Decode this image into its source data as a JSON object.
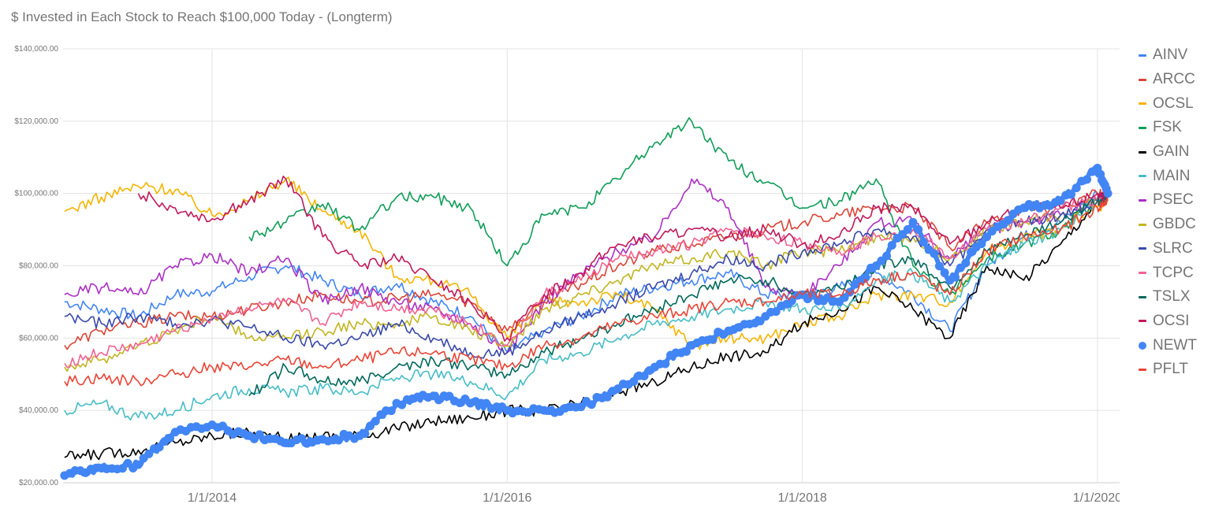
{
  "chart_data": {
    "type": "line",
    "title": "$ Invested in Each Stock to Reach $100,000 Today - (Longterm)",
    "xlabel": "",
    "ylabel": "",
    "ylim": [
      20000,
      140000
    ],
    "yticks": [
      20000,
      40000,
      60000,
      80000,
      100000,
      120000,
      140000
    ],
    "ytick_labels": [
      "$20,000.00",
      "$40,000.00",
      "$60,000.00",
      "$80,000.00",
      "$100,000.00",
      "$120,000.00",
      "$140,000.00"
    ],
    "xticks": [
      2014,
      2016,
      2018,
      2020
    ],
    "xtick_labels": [
      "1/1/2014",
      "1/1/2016",
      "1/1/2018",
      "1/1/2020"
    ],
    "xlim": [
      2012.99,
      2020.15
    ],
    "grid": true,
    "legend_position": "right",
    "x": [
      2013.0,
      2013.25,
      2013.5,
      2013.75,
      2014.0,
      2014.25,
      2014.5,
      2014.75,
      2015.0,
      2015.25,
      2015.5,
      2015.75,
      2016.0,
      2016.25,
      2016.5,
      2016.75,
      2017.0,
      2017.25,
      2017.5,
      2017.75,
      2018.0,
      2018.25,
      2018.5,
      2018.75,
      2019.0,
      2019.25,
      2019.5,
      2019.75,
      2020.0,
      2020.07
    ],
    "series": [
      {
        "name": "AINV",
        "color": "#4285f4",
        "marker": "line",
        "values": [
          70000,
          68000,
          66000,
          72000,
          73000,
          77000,
          80000,
          76000,
          72000,
          75000,
          70000,
          66000,
          56000,
          62000,
          66000,
          72000,
          74000,
          76000,
          78000,
          72000,
          72000,
          74000,
          78000,
          72000,
          62000,
          80000,
          88000,
          92000,
          100000,
          99000
        ]
      },
      {
        "name": "ARCC",
        "color": "#db4437",
        "marker": "line",
        "values": [
          58000,
          62000,
          64000,
          66000,
          66000,
          68000,
          70000,
          72000,
          70000,
          71000,
          72000,
          70000,
          62000,
          70000,
          75000,
          80000,
          84000,
          86000,
          88000,
          90000,
          92000,
          94000,
          96000,
          96000,
          85000,
          92000,
          96000,
          96000,
          100000,
          99000
        ]
      },
      {
        "name": "OCSL",
        "color": "#f4b400",
        "marker": "line",
        "values": [
          95000,
          99000,
          102000,
          101000,
          94000,
          98000,
          104000,
          95000,
          90000,
          77000,
          76000,
          72000,
          60000,
          70000,
          70000,
          72000,
          68000,
          58000,
          60000,
          60000,
          64000,
          66000,
          72000,
          72000,
          70000,
          84000,
          88000,
          90000,
          96000,
          98000
        ]
      },
      {
        "name": "FSK",
        "color": "#0f9d58",
        "marker": "line",
        "values": [
          null,
          null,
          null,
          null,
          null,
          88000,
          92000,
          97000,
          90000,
          99000,
          99000,
          96000,
          80000,
          94000,
          96000,
          104000,
          114000,
          120000,
          109000,
          103000,
          96000,
          98000,
          104000,
          80000,
          72000,
          82000,
          86000,
          90000,
          98000,
          99000
        ]
      },
      {
        "name": "GAIN",
        "color": "#000000",
        "marker": "line",
        "values": [
          27000,
          28000,
          29000,
          31000,
          33000,
          34000,
          32000,
          33000,
          33000,
          35000,
          37000,
          38000,
          40000,
          40000,
          42000,
          45000,
          48000,
          52000,
          55000,
          56000,
          64000,
          68000,
          74000,
          68000,
          60000,
          80000,
          76000,
          86000,
          98000,
          100000
        ]
      },
      {
        "name": "MAIN",
        "color": "#46bdc6",
        "marker": "line",
        "values": [
          40000,
          42000,
          38000,
          40000,
          44000,
          46000,
          45000,
          46000,
          45000,
          49000,
          50000,
          48000,
          44000,
          54000,
          56000,
          60000,
          64000,
          66000,
          68000,
          70000,
          68000,
          68000,
          76000,
          78000,
          70000,
          80000,
          86000,
          90000,
          98000,
          99000
        ]
      },
      {
        "name": "PSEC",
        "color": "#ab30c4",
        "marker": "line",
        "values": [
          72000,
          74000,
          72000,
          80000,
          83000,
          78000,
          82000,
          70000,
          74000,
          70000,
          68000,
          64000,
          56000,
          70000,
          78000,
          84000,
          88000,
          104000,
          96000,
          74000,
          72000,
          80000,
          92000,
          92000,
          82000,
          90000,
          92000,
          94000,
          98000,
          99000
        ]
      },
      {
        "name": "GBDC",
        "color": "#c2b521",
        "marker": "line",
        "values": [
          52000,
          54000,
          58000,
          62000,
          66000,
          60000,
          60000,
          62000,
          64000,
          64000,
          66000,
          62000,
          58000,
          68000,
          72000,
          76000,
          80000,
          82000,
          84000,
          80000,
          84000,
          84000,
          88000,
          88000,
          82000,
          90000,
          92000,
          94000,
          98000,
          99000
        ]
      },
      {
        "name": "SLRC",
        "color": "#3949ab",
        "marker": "line",
        "values": [
          66000,
          64000,
          66000,
          64000,
          65000,
          63000,
          60000,
          58000,
          60000,
          64000,
          60000,
          56000,
          56000,
          62000,
          66000,
          70000,
          74000,
          78000,
          82000,
          80000,
          84000,
          86000,
          90000,
          88000,
          80000,
          90000,
          92000,
          94000,
          98000,
          99000
        ]
      },
      {
        "name": "TCPC",
        "color": "#f06292",
        "marker": "line",
        "values": [
          53000,
          56000,
          58000,
          62000,
          66000,
          68000,
          70000,
          64000,
          70000,
          68000,
          68000,
          64000,
          58000,
          72000,
          76000,
          82000,
          84000,
          86000,
          90000,
          88000,
          86000,
          84000,
          88000,
          90000,
          82000,
          90000,
          92000,
          96000,
          98000,
          99000
        ]
      },
      {
        "name": "TSLX",
        "color": "#00695c",
        "marker": "line",
        "values": [
          null,
          null,
          null,
          null,
          null,
          44000,
          52000,
          48000,
          48000,
          52000,
          54000,
          52000,
          50000,
          56000,
          60000,
          64000,
          68000,
          72000,
          76000,
          76000,
          72000,
          74000,
          80000,
          82000,
          74000,
          84000,
          88000,
          92000,
          98000,
          99000
        ]
      },
      {
        "name": "OCSI",
        "color": "#c2185b",
        "marker": "line",
        "values": [
          null,
          null,
          100000,
          96000,
          93000,
          98000,
          104000,
          88000,
          80000,
          82000,
          76000,
          70000,
          60000,
          72000,
          78000,
          86000,
          88000,
          90000,
          88000,
          90000,
          86000,
          88000,
          96000,
          96000,
          86000,
          92000,
          96000,
          96000,
          100000,
          99000
        ]
      },
      {
        "name": "NEWT",
        "color": "#4285f4",
        "marker": "dots",
        "values": [
          22000,
          24000,
          25000,
          34000,
          36000,
          33000,
          31000,
          32000,
          33000,
          42000,
          44000,
          42000,
          40000,
          40000,
          41000,
          46000,
          52000,
          58000,
          62000,
          66000,
          72000,
          70000,
          80000,
          92000,
          76000,
          88000,
          96000,
          98000,
          107000,
          100000
        ]
      },
      {
        "name": "PFLT",
        "color": "#ea4335",
        "marker": "line",
        "values": [
          48000,
          49000,
          48000,
          50000,
          52000,
          52000,
          54000,
          52000,
          54000,
          56000,
          56000,
          54000,
          52000,
          58000,
          60000,
          64000,
          66000,
          68000,
          70000,
          70000,
          72000,
          72000,
          76000,
          78000,
          72000,
          84000,
          88000,
          90000,
          96000,
          98000
        ]
      }
    ]
  },
  "legend": {
    "items": [
      {
        "label": "AINV",
        "color": "#4285f4",
        "marker": "line"
      },
      {
        "label": "ARCC",
        "color": "#db4437",
        "marker": "line"
      },
      {
        "label": "OCSL",
        "color": "#f4b400",
        "marker": "line"
      },
      {
        "label": "FSK",
        "color": "#0f9d58",
        "marker": "line"
      },
      {
        "label": "GAIN",
        "color": "#000000",
        "marker": "line"
      },
      {
        "label": "MAIN",
        "color": "#46bdc6",
        "marker": "line"
      },
      {
        "label": "PSEC",
        "color": "#ab30c4",
        "marker": "line"
      },
      {
        "label": "GBDC",
        "color": "#c2b521",
        "marker": "line"
      },
      {
        "label": "SLRC",
        "color": "#3949ab",
        "marker": "line"
      },
      {
        "label": "TCPC",
        "color": "#f06292",
        "marker": "line"
      },
      {
        "label": "TSLX",
        "color": "#00695c",
        "marker": "line"
      },
      {
        "label": "OCSI",
        "color": "#c2185b",
        "marker": "line"
      },
      {
        "label": "NEWT",
        "color": "#4285f4",
        "marker": "dot"
      },
      {
        "label": "PFLT",
        "color": "#ea4335",
        "marker": "line"
      }
    ]
  }
}
